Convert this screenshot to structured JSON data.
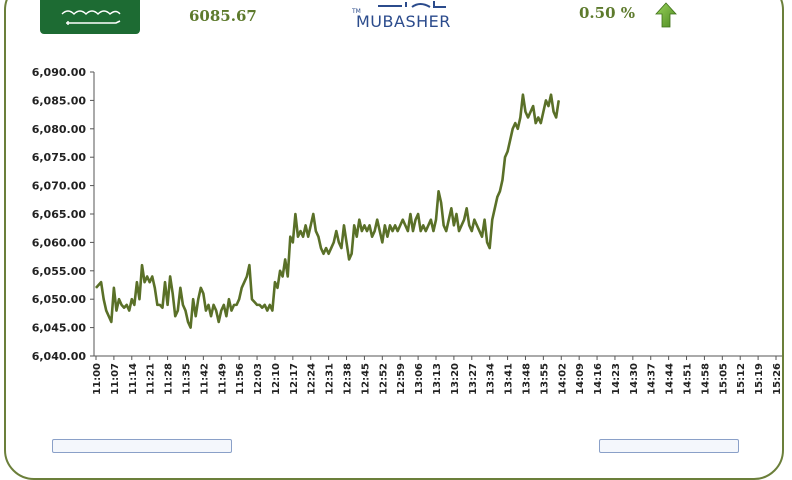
{
  "header": {
    "index_value": "6085.67",
    "change_percent": "0.50 %",
    "logo_text": "MUBASHER",
    "logo_tm": "TM",
    "flag_icon": "saudi-flag-icon",
    "arrow_icon": "up-arrow-icon",
    "colors": {
      "accent": "#5d7a2c",
      "line": "#5a7028",
      "frame": "#6b7f3a",
      "arrow": "#6aa832",
      "flag": "#1d6b33"
    }
  },
  "chart_data": {
    "type": "line",
    "title": "",
    "xlabel": "",
    "ylabel": "",
    "ylim": [
      6040,
      6090
    ],
    "grid": false,
    "ytick_labels": [
      "6,040.00",
      "6,045.00",
      "6,050.00",
      "6,055.00",
      "6,060.00",
      "6,065.00",
      "6,070.00",
      "6,075.00",
      "6,080.00",
      "6,085.00",
      "6,090.00"
    ],
    "ytick_values": [
      6040,
      6045,
      6050,
      6055,
      6060,
      6065,
      6070,
      6075,
      6080,
      6085,
      6090
    ],
    "xtick_labels": [
      "11:00",
      "11:07",
      "11:14",
      "11:21",
      "11:28",
      "11:35",
      "11:42",
      "11:49",
      "11:56",
      "12:03",
      "12:10",
      "12:17",
      "12:24",
      "12:31",
      "12:38",
      "12:45",
      "12:52",
      "12:59",
      "13:06",
      "13:13",
      "13:20",
      "13:27",
      "13:34",
      "13:41",
      "13:48",
      "13:55",
      "14:02",
      "14:09",
      "14:16",
      "14:23",
      "14:30",
      "14:37",
      "14:44",
      "14:51",
      "14:58",
      "15:05",
      "15:12",
      "15:19",
      "15:26"
    ],
    "series": [
      {
        "x_start": "11:00",
        "interval_minutes": 1,
        "values": [
          6052,
          6052.5,
          6053,
          6050,
          6048,
          6047,
          6046,
          6052,
          6048,
          6050,
          6049,
          6048.5,
          6049,
          6048,
          6050,
          6049,
          6053,
          6050,
          6056,
          6053,
          6054,
          6053,
          6054,
          6052,
          6049,
          6049,
          6048.5,
          6053,
          6049,
          6054,
          6051,
          6047,
          6048,
          6052,
          6049,
          6048,
          6046,
          6045,
          6050,
          6047,
          6050,
          6052,
          6051,
          6048,
          6049,
          6047,
          6049,
          6048,
          6046,
          6048,
          6049,
          6047,
          6050,
          6048,
          6049,
          6049,
          6050,
          6052,
          6053,
          6054,
          6056,
          6050,
          6049.5,
          6049,
          6049,
          6048.5,
          6049,
          6048,
          6049,
          6048,
          6053,
          6052,
          6055,
          6054,
          6057,
          6054,
          6061,
          6060,
          6065,
          6061,
          6062,
          6061,
          6063,
          6061,
          6063,
          6065,
          6062,
          6061,
          6059,
          6058,
          6059,
          6058,
          6059,
          6060,
          6062,
          6060,
          6059,
          6063,
          6060,
          6057,
          6058,
          6063,
          6061,
          6064,
          6062,
          6063,
          6062,
          6063,
          6061,
          6062,
          6064,
          6062,
          6060,
          6063,
          6061,
          6063,
          6062,
          6063,
          6062,
          6063,
          6064,
          6063,
          6062,
          6065,
          6062,
          6064,
          6065,
          6062,
          6063,
          6062,
          6063,
          6064,
          6062,
          6064,
          6069,
          6067,
          6063,
          6062,
          6064,
          6066,
          6063,
          6065,
          6062,
          6063,
          6064,
          6066,
          6063,
          6062,
          6064,
          6063,
          6062,
          6061,
          6064,
          6060,
          6059,
          6064,
          6066,
          6068,
          6069,
          6071,
          6075,
          6076,
          6078,
          6080,
          6081,
          6080,
          6082,
          6086,
          6083,
          6082,
          6083,
          6084,
          6081,
          6082,
          6081,
          6083,
          6085,
          6084,
          6086,
          6083,
          6082,
          6085
        ]
      }
    ]
  }
}
